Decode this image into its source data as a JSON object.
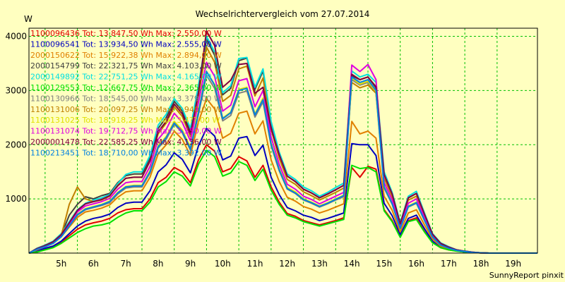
{
  "chart_data": {
    "type": "line",
    "title": "Wechselrichtervergleich vom 27.07.2014",
    "ylabel": "W",
    "xlabel": "",
    "footer": "SunnyReport pinxit",
    "x_tick_labels": [
      "5h",
      "6h",
      "7h",
      "8h",
      "9h",
      "10h",
      "11h",
      "12h",
      "13h",
      "14h",
      "15h",
      "16h",
      "17h",
      "18h",
      "19h"
    ],
    "y_tick_values": [
      1000,
      2000,
      3000,
      4000
    ],
    "y_tick_labels": [
      "1000",
      "2000",
      "3000",
      "4000"
    ],
    "xlim": [
      4.5,
      20.25
    ],
    "ylim": [
      0,
      4150
    ],
    "grid": true,
    "legend_position": "top-left",
    "x": [
      4.5,
      4.75,
      5.0,
      5.25,
      5.5,
      5.75,
      6.0,
      6.25,
      6.5,
      6.75,
      7.0,
      7.25,
      7.5,
      7.75,
      8.0,
      8.25,
      8.5,
      8.75,
      9.0,
      9.25,
      9.5,
      9.75,
      10.0,
      10.25,
      10.5,
      10.75,
      11.0,
      11.25,
      11.5,
      11.75,
      12.0,
      12.25,
      12.5,
      12.75,
      13.0,
      13.25,
      13.5,
      13.75,
      14.0,
      14.25,
      14.5,
      14.75,
      15.0,
      15.25,
      15.5,
      15.75,
      16.0,
      16.25,
      16.5,
      16.75,
      17.0,
      17.25,
      17.5,
      17.75,
      18.0,
      18.25,
      18.5,
      18.75,
      19.0,
      19.25,
      19.5,
      19.75,
      20.0,
      20.25
    ],
    "series": [
      {
        "name": "1100096436 Tot: 13.847,50 Wh Max: 2.550,00 W",
        "color": "#e00000",
        "values": [
          0,
          30,
          80,
          120,
          200,
          320,
          440,
          520,
          560,
          590,
          640,
          740,
          800,
          820,
          820,
          1000,
          1300,
          1400,
          1580,
          1500,
          1300,
          1720,
          2000,
          1880,
          1500,
          1560,
          1780,
          1700,
          1400,
          1620,
          1220,
          940,
          730,
          680,
          600,
          560,
          520,
          560,
          600,
          650,
          1580,
          1400,
          1600,
          1550,
          800,
          600,
          300,
          600,
          650,
          400,
          200,
          100,
          60,
          40,
          20,
          10,
          5,
          0,
          0,
          0,
          0,
          0,
          0,
          0
        ]
      },
      {
        "name": "1100096541 Tot: 13.934,50 Wh Max: 2.555,00 W",
        "color": "#0000c0",
        "values": [
          0,
          40,
          90,
          130,
          220,
          360,
          500,
          590,
          640,
          670,
          720,
          840,
          920,
          940,
          940,
          1150,
          1500,
          1630,
          1850,
          1730,
          1480,
          1980,
          2300,
          2160,
          1720,
          1790,
          2120,
          2150,
          1800,
          1990,
          1400,
          1080,
          840,
          780,
          700,
          660,
          600,
          640,
          690,
          740,
          2020,
          2000,
          2000,
          1800,
          920,
          690,
          340,
          640,
          700,
          450,
          220,
          110,
          70,
          40,
          20,
          10,
          5,
          0,
          0,
          0,
          0,
          0,
          0,
          0
        ]
      },
      {
        "name": "2000150622 Tot: 15.922,38 Wh Max: 2.894,00 W",
        "color": "#e08000",
        "values": [
          0,
          60,
          120,
          180,
          300,
          480,
          660,
          760,
          790,
          830,
          890,
          1030,
          1130,
          1150,
          1150,
          1400,
          1830,
          2000,
          2250,
          2100,
          1800,
          2420,
          2850,
          2660,
          2120,
          2210,
          2580,
          2620,
          2200,
          2440,
          1720,
          1320,
          1030,
          960,
          860,
          810,
          740,
          790,
          850,
          910,
          2430,
          2200,
          2250,
          2120,
          1050,
          790,
          390,
          740,
          800,
          520,
          260,
          130,
          80,
          45,
          25,
          12,
          5,
          0,
          0,
          0,
          0,
          0,
          0,
          0
        ]
      },
      {
        "name": "2000154799 Tot: 22.321,75 Wh Max: 4.103,00 W",
        "color": "#404040",
        "values": [
          0,
          80,
          130,
          200,
          330,
          700,
          900,
          1040,
          1000,
          1060,
          1100,
          1300,
          1430,
          1460,
          1460,
          1760,
          2300,
          2500,
          2800,
          2620,
          2250,
          3020,
          3950,
          3650,
          2920,
          3040,
          3550,
          3600,
          3020,
          3360,
          2380,
          1830,
          1420,
          1320,
          1180,
          1110,
          1020,
          1090,
          1170,
          1250,
          3270,
          3200,
          3250,
          3050,
          1450,
          1090,
          540,
          1020,
          1100,
          720,
          350,
          180,
          110,
          60,
          35,
          15,
          5,
          0,
          0,
          0,
          0,
          0,
          0,
          0
        ]
      },
      {
        "name": "2000149892 Tot: 22.751,25 Wh Max: 4.165,00 W",
        "color": "#00e0e0",
        "values": [
          0,
          90,
          150,
          220,
          360,
          580,
          800,
          920,
          980,
          1020,
          1080,
          1280,
          1450,
          1500,
          1500,
          1800,
          2360,
          2560,
          2850,
          2670,
          2300,
          3100,
          4000,
          3710,
          2960,
          3090,
          3590,
          3610,
          3060,
          3400,
          2430,
          1870,
          1460,
          1360,
          1220,
          1150,
          1050,
          1120,
          1210,
          1290,
          3360,
          3250,
          3300,
          3150,
          1500,
          1120,
          560,
          1050,
          1140,
          740,
          360,
          190,
          120,
          60,
          35,
          15,
          5,
          0,
          0,
          0,
          0,
          0,
          0,
          0
        ]
      },
      {
        "name": "1100129553 Tot: 12.667,75 Wh Max: 2.365,00 W",
        "color": "#00e000",
        "values": [
          0,
          20,
          60,
          100,
          180,
          280,
          380,
          450,
          500,
          520,
          560,
          660,
          740,
          780,
          780,
          940,
          1220,
          1320,
          1500,
          1420,
          1240,
          1640,
          1900,
          1780,
          1420,
          1480,
          1690,
          1620,
          1340,
          1550,
          1160,
          900,
          700,
          650,
          580,
          540,
          500,
          540,
          580,
          620,
          1620,
          1560,
          1580,
          1500,
          780,
          580,
          290,
          580,
          620,
          390,
          190,
          100,
          60,
          35,
          20,
          10,
          5,
          0,
          0,
          0,
          0,
          0,
          0,
          0
        ]
      },
      {
        "name": "1100130966 Tot: 18.545,00 Wh Max: 3.379,00 W",
        "color": "#808080",
        "values": [
          0,
          70,
          120,
          180,
          300,
          500,
          700,
          800,
          840,
          880,
          930,
          1090,
          1200,
          1220,
          1220,
          1480,
          1940,
          2100,
          2380,
          2220,
          1900,
          2560,
          3280,
          3040,
          2440,
          2540,
          2950,
          2990,
          2510,
          2790,
          1980,
          1520,
          1180,
          1100,
          980,
          920,
          850,
          910,
          980,
          1040,
          3200,
          3100,
          3150,
          2950,
          1200,
          900,
          450,
          850,
          920,
          600,
          290,
          150,
          90,
          50,
          30,
          12,
          5,
          0,
          0,
          0,
          0,
          0,
          0,
          0
        ]
      },
      {
        "name": "1100131006 Tot: 20.097,25 Wh Max: 3.940,00 W",
        "color": "#c08000",
        "values": [
          0,
          80,
          130,
          200,
          320,
          900,
          1220,
          1000,
          950,
          980,
          1050,
          1250,
          1380,
          1400,
          1400,
          1700,
          2200,
          2400,
          2700,
          2520,
          2150,
          2900,
          3800,
          3520,
          2800,
          2910,
          3400,
          3450,
          2900,
          3230,
          2280,
          1750,
          1360,
          1270,
          1130,
          1060,
          980,
          1050,
          1120,
          1200,
          3150,
          3050,
          3100,
          2950,
          1380,
          1040,
          520,
          980,
          1050,
          690,
          330,
          170,
          100,
          55,
          30,
          15,
          5,
          0,
          0,
          0,
          0,
          0,
          0,
          0
        ]
      },
      {
        "name": "1100131025 Tot: 18.918,25 Wh Max: 3.4??,00 W",
        "color": "#e0e000",
        "values": [
          0,
          75,
          125,
          190,
          310,
          520,
          720,
          820,
          860,
          900,
          960,
          1120,
          1230,
          1250,
          1250,
          1520,
          1980,
          2150,
          2430,
          2270,
          1950,
          2620,
          3350,
          3110,
          2490,
          2600,
          3020,
          3060,
          2570,
          2860,
          2030,
          1560,
          1210,
          1130,
          1000,
          940,
          870,
          930,
          1000,
          1070,
          3230,
          3120,
          3170,
          2980,
          1230,
          920,
          460,
          870,
          940,
          620,
          300,
          150,
          90,
          50,
          30,
          12,
          5,
          0,
          0,
          0,
          0,
          0,
          0,
          0
        ]
      },
      {
        "name": "1100131074 Tot: 19.712,75 Wh Max: 3.550,00 W",
        "color": "#e000e0",
        "values": [
          0,
          80,
          130,
          200,
          330,
          540,
          760,
          870,
          910,
          950,
          1010,
          1180,
          1300,
          1320,
          1320,
          1600,
          2100,
          2280,
          2580,
          2410,
          2070,
          2780,
          3520,
          3260,
          2620,
          2730,
          3180,
          3220,
          2700,
          3000,
          2140,
          1640,
          1270,
          1180,
          1050,
          990,
          910,
          980,
          1050,
          1120,
          3470,
          3350,
          3480,
          3200,
          1300,
          980,
          490,
          920,
          1000,
          650,
          310,
          160,
          100,
          55,
          30,
          15,
          5,
          0,
          0,
          0,
          0,
          0,
          0,
          0
        ]
      },
      {
        "name": "2000001478 Tot: 22.585,25 Wh Max: 4.136,00 W",
        "color": "#800040",
        "values": [
          0,
          85,
          140,
          210,
          340,
          560,
          790,
          910,
          950,
          990,
          1060,
          1240,
          1380,
          1400,
          1400,
          1700,
          2240,
          2430,
          2750,
          2570,
          2200,
          2960,
          4100,
          3830,
          3060,
          3190,
          3480,
          3500,
          2950,
          3060,
          2300,
          1820,
          1420,
          1320,
          1180,
          1110,
          1020,
          1090,
          1170,
          1250,
          3300,
          3200,
          3250,
          3070,
          1450,
          1090,
          540,
          1020,
          1100,
          720,
          350,
          180,
          110,
          60,
          35,
          15,
          5,
          0,
          0,
          0,
          0,
          0,
          0,
          0
        ]
      },
      {
        "name": "1100213451 Tot: 18.710,00 Wh Max: 3.392,00 W",
        "color": "#0080e0",
        "values": [
          0,
          70,
          120,
          180,
          300,
          500,
          710,
          810,
          850,
          890,
          950,
          1110,
          1220,
          1240,
          1240,
          1500,
          1960,
          2130,
          2400,
          2240,
          1920,
          2590,
          3350,
          3100,
          2480,
          2590,
          3000,
          3040,
          2550,
          2830,
          2010,
          1540,
          1190,
          1110,
          990,
          930,
          860,
          920,
          990,
          1060,
          3250,
          3150,
          3200,
          3000,
          1220,
          910,
          460,
          860,
          930,
          610,
          300,
          150,
          90,
          50,
          30,
          12,
          5,
          0,
          0,
          0,
          0,
          0,
          0,
          0
        ]
      }
    ]
  }
}
